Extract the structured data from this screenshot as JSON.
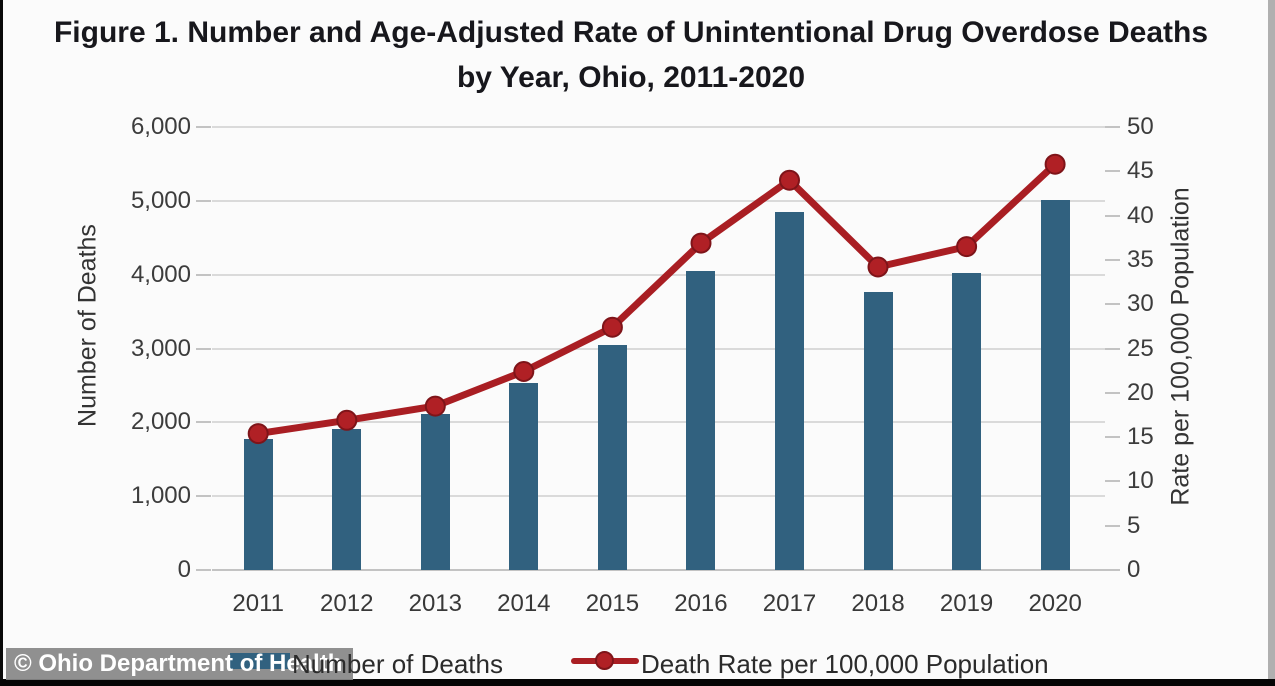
{
  "title": {
    "line1": "Figure 1. Number and Age-Adjusted Rate of Unintentional Drug Overdose Deaths",
    "line2": "by Year, Ohio, 2011-2020"
  },
  "watermark": {
    "text": "© Ohio Department of Health"
  },
  "legend": {
    "deaths_label": "Number of Deaths",
    "rate_label": "Death Rate per 100,000 Population"
  },
  "colors": {
    "bar": "#31617F",
    "line": "#A91E23",
    "line_edge": "#7E1419",
    "marker": "#B02025",
    "grid": "#dadada",
    "axis": "#c3c3c3",
    "watermark_bg": "#888888",
    "watermark_text": "#ffffff"
  },
  "chart_data": {
    "type": "combo (bar + line, dual axis)",
    "title": "Figure 1. Number and Age-Adjusted Rate of Unintentional Drug Overdose Deaths by Year, Ohio, 2011-2020",
    "categories": [
      "2011",
      "2012",
      "2013",
      "2014",
      "2015",
      "2016",
      "2017",
      "2018",
      "2019",
      "2020"
    ],
    "series": [
      {
        "name": "Number of Deaths",
        "type": "bar",
        "axis": "left",
        "values": [
          1772,
          1914,
          2110,
          2531,
          3050,
          4050,
          4854,
          3764,
          4028,
          5017
        ]
      },
      {
        "name": "Death Rate per 100,000 Population",
        "type": "line",
        "axis": "right",
        "values": [
          15.4,
          16.9,
          18.5,
          22.4,
          27.4,
          36.9,
          44.0,
          34.2,
          36.5,
          45.8
        ]
      }
    ],
    "left_axis": {
      "label": "Number of Deaths",
      "lim": [
        0,
        6000
      ],
      "ticks": [
        "0",
        "1,000",
        "2,000",
        "3,000",
        "4,000",
        "5,000",
        "6,000"
      ]
    },
    "right_axis": {
      "label": "Rate per 100,000 Population",
      "lim": [
        0,
        50
      ],
      "ticks": [
        "0",
        "5",
        "10",
        "15",
        "20",
        "25",
        "30",
        "35",
        "40",
        "45",
        "50"
      ]
    },
    "grid": "horizontal major gridlines",
    "legend_position": "bottom"
  }
}
